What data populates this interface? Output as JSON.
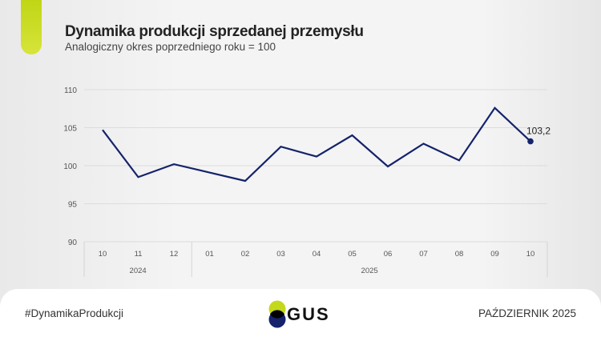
{
  "header": {
    "title": "Dynamika produkcji sprzedanej przemysłu",
    "subtitle": "Analogiczny okres poprzedniego roku = 100"
  },
  "footer": {
    "hashtag": "#DynamikaProdukcji",
    "logo_text": "GUS",
    "date": "PAŹDZIERNIK 2025"
  },
  "colors": {
    "line": "#14236b",
    "accent": "#c4d81c",
    "logo_blue": "#14236b"
  },
  "chart_data": {
    "type": "line",
    "title": "Dynamika produkcji sprzedanej przemysłu",
    "subtitle": "Analogiczny okres poprzedniego roku = 100",
    "categories": [
      "10",
      "11",
      "12",
      "01",
      "02",
      "03",
      "04",
      "05",
      "06",
      "07",
      "08",
      "09",
      "10"
    ],
    "year_groups": [
      {
        "label": "2024",
        "count": 3
      },
      {
        "label": "2025",
        "count": 10
      }
    ],
    "series": [
      {
        "name": "Dynamika",
        "values": [
          104.7,
          98.5,
          100.2,
          99.1,
          98.0,
          102.5,
          101.2,
          104.0,
          99.9,
          102.9,
          100.7,
          107.6,
          103.2
        ]
      }
    ],
    "last_label": "103,2",
    "ylim": [
      90,
      110
    ],
    "yticks": [
      "90",
      "95",
      "100",
      "105",
      "110"
    ],
    "grid": true,
    "xlabel": "",
    "ylabel": ""
  }
}
